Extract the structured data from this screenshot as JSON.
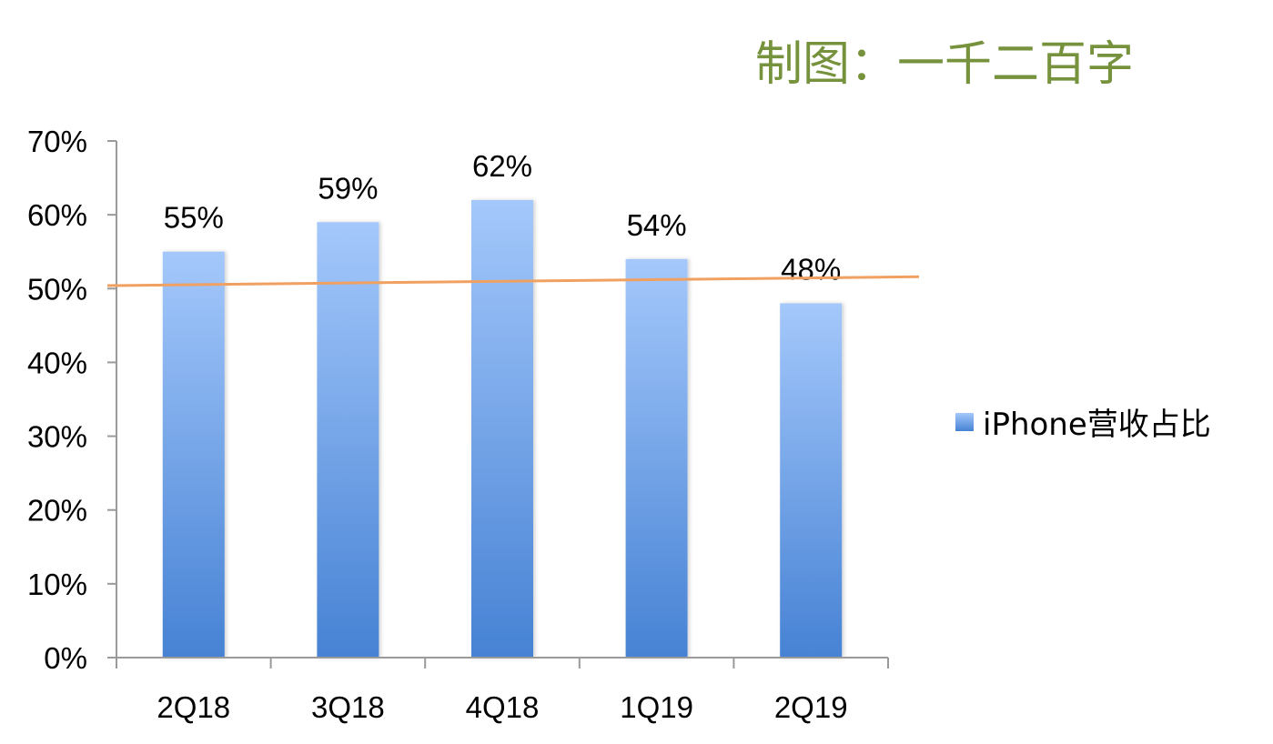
{
  "credit_text": "制图：一千二百字",
  "chart_data": {
    "type": "bar",
    "categories": [
      "2Q18",
      "3Q18",
      "4Q18",
      "1Q19",
      "2Q19"
    ],
    "series": [
      {
        "name": "iPhone营收占比",
        "values": [
          55,
          59,
          62,
          54,
          48
        ]
      }
    ],
    "data_labels": [
      "55%",
      "59%",
      "62%",
      "54%",
      "48%"
    ],
    "yticks": [
      "0%",
      "10%",
      "20%",
      "30%",
      "40%",
      "50%",
      "60%",
      "70%"
    ],
    "ylim": [
      0,
      70
    ],
    "trendline": {
      "type": "linear",
      "start": 50.4,
      "end": 51.6
    },
    "legend_position": "right",
    "grid": false,
    "colors": {
      "bar_top": "#a4c8fb",
      "bar_bottom": "#4682d4",
      "trendline": "#f0a060",
      "axis": "#9a9a9a",
      "credit": "#76923c"
    }
  }
}
